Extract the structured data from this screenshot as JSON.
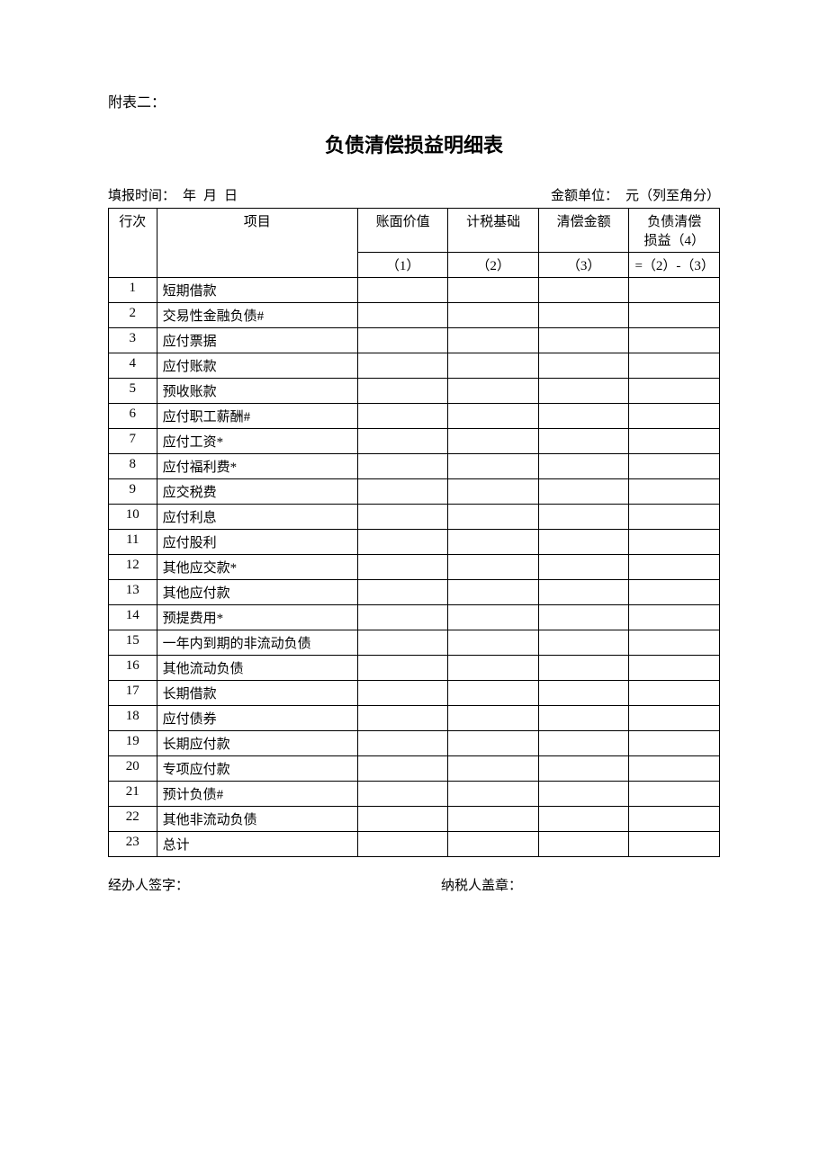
{
  "header_label": "附表二：",
  "title": "负债清偿损益明细表",
  "info": {
    "fill_time_label": "填报时间：",
    "year": "年",
    "month": "月",
    "day": "日",
    "amount_unit_label": "金额单位：",
    "amount_unit_value": "元（列至角分）"
  },
  "table": {
    "columns": {
      "row_num": "行次",
      "item": "项目",
      "book_value": "账面价值",
      "tax_basis": "计税基础",
      "settle_amount": "清偿金额",
      "gain_loss_line1": "负债清偿",
      "gain_loss_line2": "损益（4）"
    },
    "sub_columns": {
      "c1": "（1）",
      "c2": "（2）",
      "c3": "（3）",
      "c4": "=（2）-（3）"
    },
    "rows": [
      {
        "num": "1",
        "item": "短期借款",
        "v1": "",
        "v2": "",
        "v3": "",
        "v4": ""
      },
      {
        "num": "2",
        "item": "交易性金融负债#",
        "v1": "",
        "v2": "",
        "v3": "",
        "v4": ""
      },
      {
        "num": "3",
        "item": "应付票据",
        "v1": "",
        "v2": "",
        "v3": "",
        "v4": ""
      },
      {
        "num": "4",
        "item": "应付账款",
        "v1": "",
        "v2": "",
        "v3": "",
        "v4": ""
      },
      {
        "num": "5",
        "item": "预收账款",
        "v1": "",
        "v2": "",
        "v3": "",
        "v4": ""
      },
      {
        "num": "6",
        "item": "应付职工薪酬#",
        "v1": "",
        "v2": "",
        "v3": "",
        "v4": ""
      },
      {
        "num": "7",
        "item": "应付工资*",
        "v1": "",
        "v2": "",
        "v3": "",
        "v4": ""
      },
      {
        "num": "8",
        "item": "应付福利费*",
        "v1": "",
        "v2": "",
        "v3": "",
        "v4": ""
      },
      {
        "num": "9",
        "item": "应交税费",
        "v1": "",
        "v2": "",
        "v3": "",
        "v4": ""
      },
      {
        "num": "10",
        "item": "应付利息",
        "v1": "",
        "v2": "",
        "v3": "",
        "v4": ""
      },
      {
        "num": "11",
        "item": "应付股利",
        "v1": "",
        "v2": "",
        "v3": "",
        "v4": ""
      },
      {
        "num": "12",
        "item": "其他应交款*",
        "v1": "",
        "v2": "",
        "v3": "",
        "v4": ""
      },
      {
        "num": "13",
        "item": "其他应付款",
        "v1": "",
        "v2": "",
        "v3": "",
        "v4": ""
      },
      {
        "num": "14",
        "item": "预提费用*",
        "v1": "",
        "v2": "",
        "v3": "",
        "v4": ""
      },
      {
        "num": "15",
        "item": "一年内到期的非流动负债",
        "v1": "",
        "v2": "",
        "v3": "",
        "v4": ""
      },
      {
        "num": "16",
        "item": "其他流动负债",
        "v1": "",
        "v2": "",
        "v3": "",
        "v4": ""
      },
      {
        "num": "17",
        "item": "长期借款",
        "v1": "",
        "v2": "",
        "v3": "",
        "v4": ""
      },
      {
        "num": "18",
        "item": "应付债券",
        "v1": "",
        "v2": "",
        "v3": "",
        "v4": ""
      },
      {
        "num": "19",
        "item": "长期应付款",
        "v1": "",
        "v2": "",
        "v3": "",
        "v4": ""
      },
      {
        "num": "20",
        "item": "专项应付款",
        "v1": "",
        "v2": "",
        "v3": "",
        "v4": ""
      },
      {
        "num": "21",
        "item": "预计负债#",
        "v1": "",
        "v2": "",
        "v3": "",
        "v4": ""
      },
      {
        "num": "22",
        "item": "其他非流动负债",
        "v1": "",
        "v2": "",
        "v3": "",
        "v4": ""
      },
      {
        "num": "23",
        "item": "总计",
        "v1": "",
        "v2": "",
        "v3": "",
        "v4": ""
      }
    ]
  },
  "footer": {
    "handler_sign": "经办人签字：",
    "taxpayer_seal": "纳税人盖章："
  },
  "style": {
    "background_color": "#ffffff",
    "border_color": "#000000",
    "text_color": "#000000",
    "title_fontsize": 22,
    "body_fontsize": 15,
    "col_widths": {
      "num": 48,
      "item": 200,
      "val": 90
    }
  }
}
